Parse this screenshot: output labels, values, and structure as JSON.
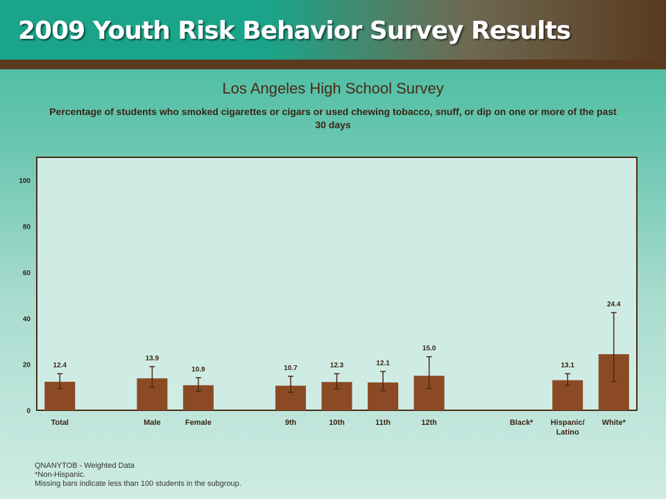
{
  "header": {
    "title": "2009 Youth Risk Behavior Survey Results"
  },
  "colors": {
    "bar": "#8b4a24",
    "error_bar": "#4a2a12",
    "plot_bg": "#cfece4",
    "axis": "#4a2a12"
  },
  "chart_data": {
    "type": "bar",
    "title": "Los Angeles High School Survey",
    "subtitle": "Percentage of students who smoked cigarettes or cigars or used chewing tobacco, snuff, or dip on one or more of the past 30 days",
    "categories": [
      "Total",
      "",
      "Male",
      "Female",
      "",
      "9th",
      "10th",
      "11th",
      "12th",
      "",
      "Black*",
      "Hispanic/ Latino",
      "White*"
    ],
    "values": [
      12.4,
      null,
      13.9,
      10.9,
      null,
      10.7,
      12.3,
      12.1,
      15.0,
      null,
      null,
      13.1,
      24.4
    ],
    "value_labels": [
      "12.4",
      "",
      "13.9",
      "10.9",
      "",
      "10.7",
      "12.3",
      "12.1",
      "15.0",
      "",
      "",
      "13.1",
      "24.4"
    ],
    "ci_low": [
      9.5,
      null,
      10.0,
      8.3,
      null,
      7.8,
      9.4,
      8.5,
      9.5,
      null,
      null,
      10.8,
      12.5
    ],
    "ci_high": [
      15.9,
      null,
      19.0,
      14.2,
      null,
      14.8,
      15.9,
      16.9,
      23.3,
      null,
      null,
      15.9,
      42.5
    ],
    "ylim": [
      0,
      110
    ],
    "yticks": [
      0,
      20,
      40,
      60,
      80,
      100
    ],
    "xlabel": "",
    "ylabel": "",
    "grid": false
  },
  "footnotes": {
    "line1": "QNANYTOB - Weighted Data",
    "line2": "*Non-Hispanic.",
    "line3": "Missing bars indicate less than 100 students in the subgroup."
  }
}
